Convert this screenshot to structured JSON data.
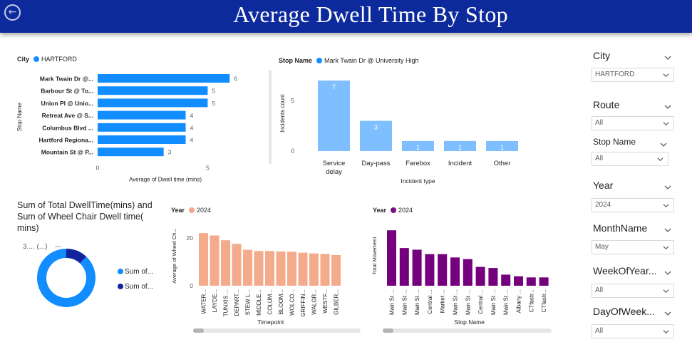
{
  "header": {
    "title": "Average Dwell Time By Stop",
    "back_icon": "back-arrow-icon"
  },
  "bar_chart_1": {
    "legend_label": "City",
    "legend_item": "HARTFORD",
    "legend_color": "#118dff",
    "bar_color": "#118dff",
    "ylabel": "Stop Name",
    "xlabel": "Average of Dwell time (mins)",
    "x_ticks": [
      "0",
      "5"
    ]
  },
  "bar_chart_2": {
    "legend_label": "Stop Name",
    "legend_item": "Mark Twain Dr @ University High",
    "legend_color": "#118dff",
    "bar_color": "#7fbfff",
    "ylabel": "Incidents count",
    "xlabel": "Incident type",
    "y_ticks": [
      "0",
      "5"
    ]
  },
  "donut": {
    "title": "Sum of Total DwellTime(mins) and Sum of Wheel Chair Dwell time( mins)",
    "slice_label": "3.... (...)",
    "legend": [
      {
        "label": "Sum of...",
        "color": "#118dff"
      },
      {
        "label": "Sum of...",
        "color": "#12239e"
      }
    ]
  },
  "bar_chart_3": {
    "legend_label": "Year",
    "legend_item": "2024",
    "legend_color": "#f1a889",
    "bar_color": "#f4ab8c",
    "ylabel": "Average of Wheel Ch...",
    "xlabel": "Timepoint",
    "y_ticks": [
      "0",
      "20"
    ]
  },
  "bar_chart_4": {
    "legend_label": "Year",
    "legend_item": "2024",
    "legend_color": "#7a0f86",
    "bar_color": "#74007e",
    "ylabel": "Total Movement",
    "xlabel": "Stop Name"
  },
  "slicers": [
    {
      "title": "City",
      "value": "HARTFORD"
    },
    {
      "title": "Route",
      "value": "All"
    },
    {
      "title": "Stop Name",
      "value": "All"
    },
    {
      "title": "Year",
      "value": "2024"
    },
    {
      "title": "MonthName",
      "value": "May"
    },
    {
      "title": "WeekOfYear...",
      "value": "All"
    },
    {
      "title": "DayOfWeek...",
      "value": "All"
    }
  ],
  "chart_data": [
    {
      "type": "bar",
      "orientation": "horizontal",
      "categories": [
        "Mark Twain Dr @...",
        "Barbour St @ To...",
        "Union Pl @ Unio...",
        "Retreat Ave @ S...",
        "Columbus Blvd ...",
        "Hartford Regiona...",
        "Mountain St @ P..."
      ],
      "values": [
        6,
        5,
        5,
        4,
        4,
        4,
        3
      ],
      "xlabel": "Average of Dwell time (mins)",
      "ylabel": "Stop Name",
      "xlim": [
        0,
        6.8
      ]
    },
    {
      "type": "bar",
      "categories": [
        "Service delay",
        "Day-pass",
        "Farebox",
        "Incident",
        "Other"
      ],
      "values": [
        7,
        3,
        1,
        1,
        1
      ],
      "xlabel": "Incident type",
      "ylabel": "Incidents count",
      "ylim": [
        0,
        7.5
      ]
    },
    {
      "type": "pie",
      "donut": true,
      "series": [
        {
          "name": "Sum of...",
          "value": 0.88
        },
        {
          "name": "Sum of...",
          "value": 0.12
        }
      ]
    },
    {
      "type": "bar",
      "categories": [
        "WATER...",
        "LAYDE...",
        "TUNXIS ...",
        "DEPART...",
        "STEW L...",
        "MIDDLE...",
        "COLUM...",
        "BLOOM...",
        "WOLCO...",
        "GRIFFIN...",
        "WALGR...",
        "WESTF...",
        "GILBER..."
      ],
      "values": [
        22,
        21,
        19,
        17.5,
        15,
        14.5,
        14.5,
        14.3,
        14.2,
        13.8,
        13.5,
        13.3,
        12.8
      ],
      "xlabel": "Timepoint",
      "ylabel": "Average of Wheel Ch...",
      "ylim": [
        0,
        25
      ]
    },
    {
      "type": "bar",
      "categories": [
        "Main St ...",
        "Main St ...",
        "Main St ...",
        "Central ...",
        "Market ...",
        "Main St ...",
        "Main St ...",
        "Central ...",
        "Main St ...",
        "Main St ...",
        "Albany ...",
        "CTfastr...",
        "CTfastr..."
      ],
      "values": [
        100,
        68,
        65,
        57,
        57,
        51,
        48,
        34,
        32,
        20,
        17,
        15,
        15
      ],
      "xlabel": "Stop Name",
      "ylabel": "Total Movement",
      "ylim": [
        0,
        108
      ]
    }
  ]
}
